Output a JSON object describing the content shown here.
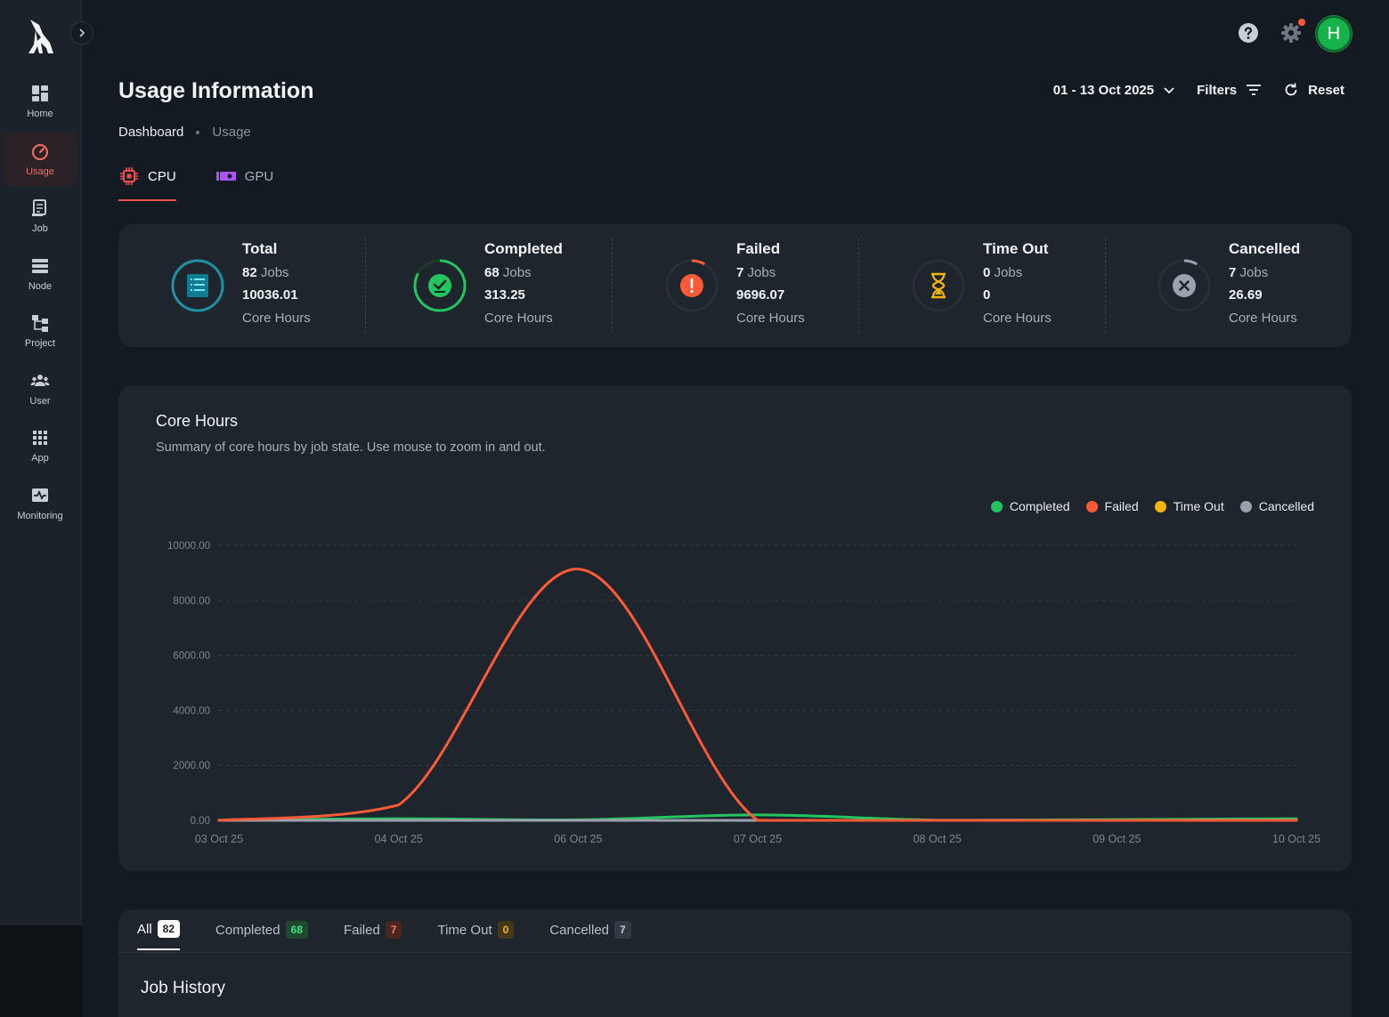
{
  "colors": {
    "accent": "#f04d4d",
    "completed": "#22c55e",
    "failed": "#ff5a36",
    "timeout": "#f5b50a",
    "cancelled": "#9aa3ad"
  },
  "sidebar": {
    "items": [
      {
        "label": "Home",
        "icon": "dashboard-icon",
        "active": false
      },
      {
        "label": "Usage",
        "icon": "speedometer-icon",
        "active": true
      },
      {
        "label": "Job",
        "icon": "job-document-icon",
        "active": false
      },
      {
        "label": "Node",
        "icon": "server-stack-icon",
        "active": false
      },
      {
        "label": "Project",
        "icon": "hierarchy-icon",
        "active": false
      },
      {
        "label": "User",
        "icon": "users-group-icon",
        "active": false
      },
      {
        "label": "App",
        "icon": "app-grid-icon",
        "active": false
      },
      {
        "label": "Monitoring",
        "icon": "pulse-monitor-icon",
        "active": false
      }
    ]
  },
  "topbar": {
    "avatar_initial": "H"
  },
  "header": {
    "title": "Usage Information",
    "breadcrumb": {
      "home": "Dashboard",
      "current": "Usage"
    },
    "date_range": "01 - 13 Oct 2025",
    "filters_label": "Filters",
    "reset_label": "Reset"
  },
  "tabs": [
    {
      "label": "CPU",
      "active": true
    },
    {
      "label": "GPU",
      "active": false
    }
  ],
  "summary": [
    {
      "title": "Total",
      "jobs": "82",
      "jobs_label": "Jobs",
      "hours": "10036.01",
      "unit": "Core Hours",
      "fraction": 1.0
    },
    {
      "title": "Completed",
      "jobs": "68",
      "jobs_label": "Jobs",
      "hours": "313.25",
      "unit": "Core Hours",
      "fraction": 0.83
    },
    {
      "title": "Failed",
      "jobs": "7",
      "jobs_label": "Jobs",
      "hours": "9696.07",
      "unit": "Core Hours",
      "fraction": 0.085
    },
    {
      "title": "Time Out",
      "jobs": "0",
      "jobs_label": "Jobs",
      "hours": "0",
      "unit": "Core Hours",
      "fraction": 0.0
    },
    {
      "title": "Cancelled",
      "jobs": "7",
      "jobs_label": "Jobs",
      "hours": "26.69",
      "unit": "Core Hours",
      "fraction": 0.085
    }
  ],
  "chart": {
    "title": "Core Hours",
    "subtitle": "Summary of core hours by job state. Use mouse to zoom in and out."
  },
  "chart_data": {
    "type": "line",
    "title": "Core Hours",
    "xlabel": "",
    "ylabel": "",
    "categories": [
      "03 Oct 25",
      "04 Oct 25",
      "06 Oct 25",
      "07 Oct 25",
      "08 Oct 25",
      "09 Oct 25",
      "10 Oct 25"
    ],
    "y_ticks": [
      "0.00",
      "2000.00",
      "4000.00",
      "6000.00",
      "8000.00",
      "10000.00"
    ],
    "ylim": [
      0,
      10000
    ],
    "legend_position": "top-right",
    "grid": true,
    "series": [
      {
        "name": "Completed",
        "color": "#22c55e",
        "values": [
          10,
          60,
          20,
          200,
          10,
          30,
          60
        ]
      },
      {
        "name": "Failed",
        "color": "#ff5a36",
        "values": [
          0,
          560,
          9140,
          0,
          0,
          0,
          0
        ]
      },
      {
        "name": "Time Out",
        "color": "#f5b50a",
        "values": [
          0,
          0,
          0,
          0,
          0,
          0,
          0
        ]
      },
      {
        "name": "Cancelled",
        "color": "#9aa3ad",
        "values": [
          0,
          0,
          0,
          0,
          0,
          0,
          10
        ]
      }
    ]
  },
  "history": {
    "tabs": [
      {
        "label": "All",
        "count": "82",
        "active": true
      },
      {
        "label": "Completed",
        "count": "68",
        "active": false
      },
      {
        "label": "Failed",
        "count": "7",
        "active": false
      },
      {
        "label": "Time Out",
        "count": "0",
        "active": false
      },
      {
        "label": "Cancelled",
        "count": "7",
        "active": false
      }
    ],
    "title": "Job History"
  }
}
